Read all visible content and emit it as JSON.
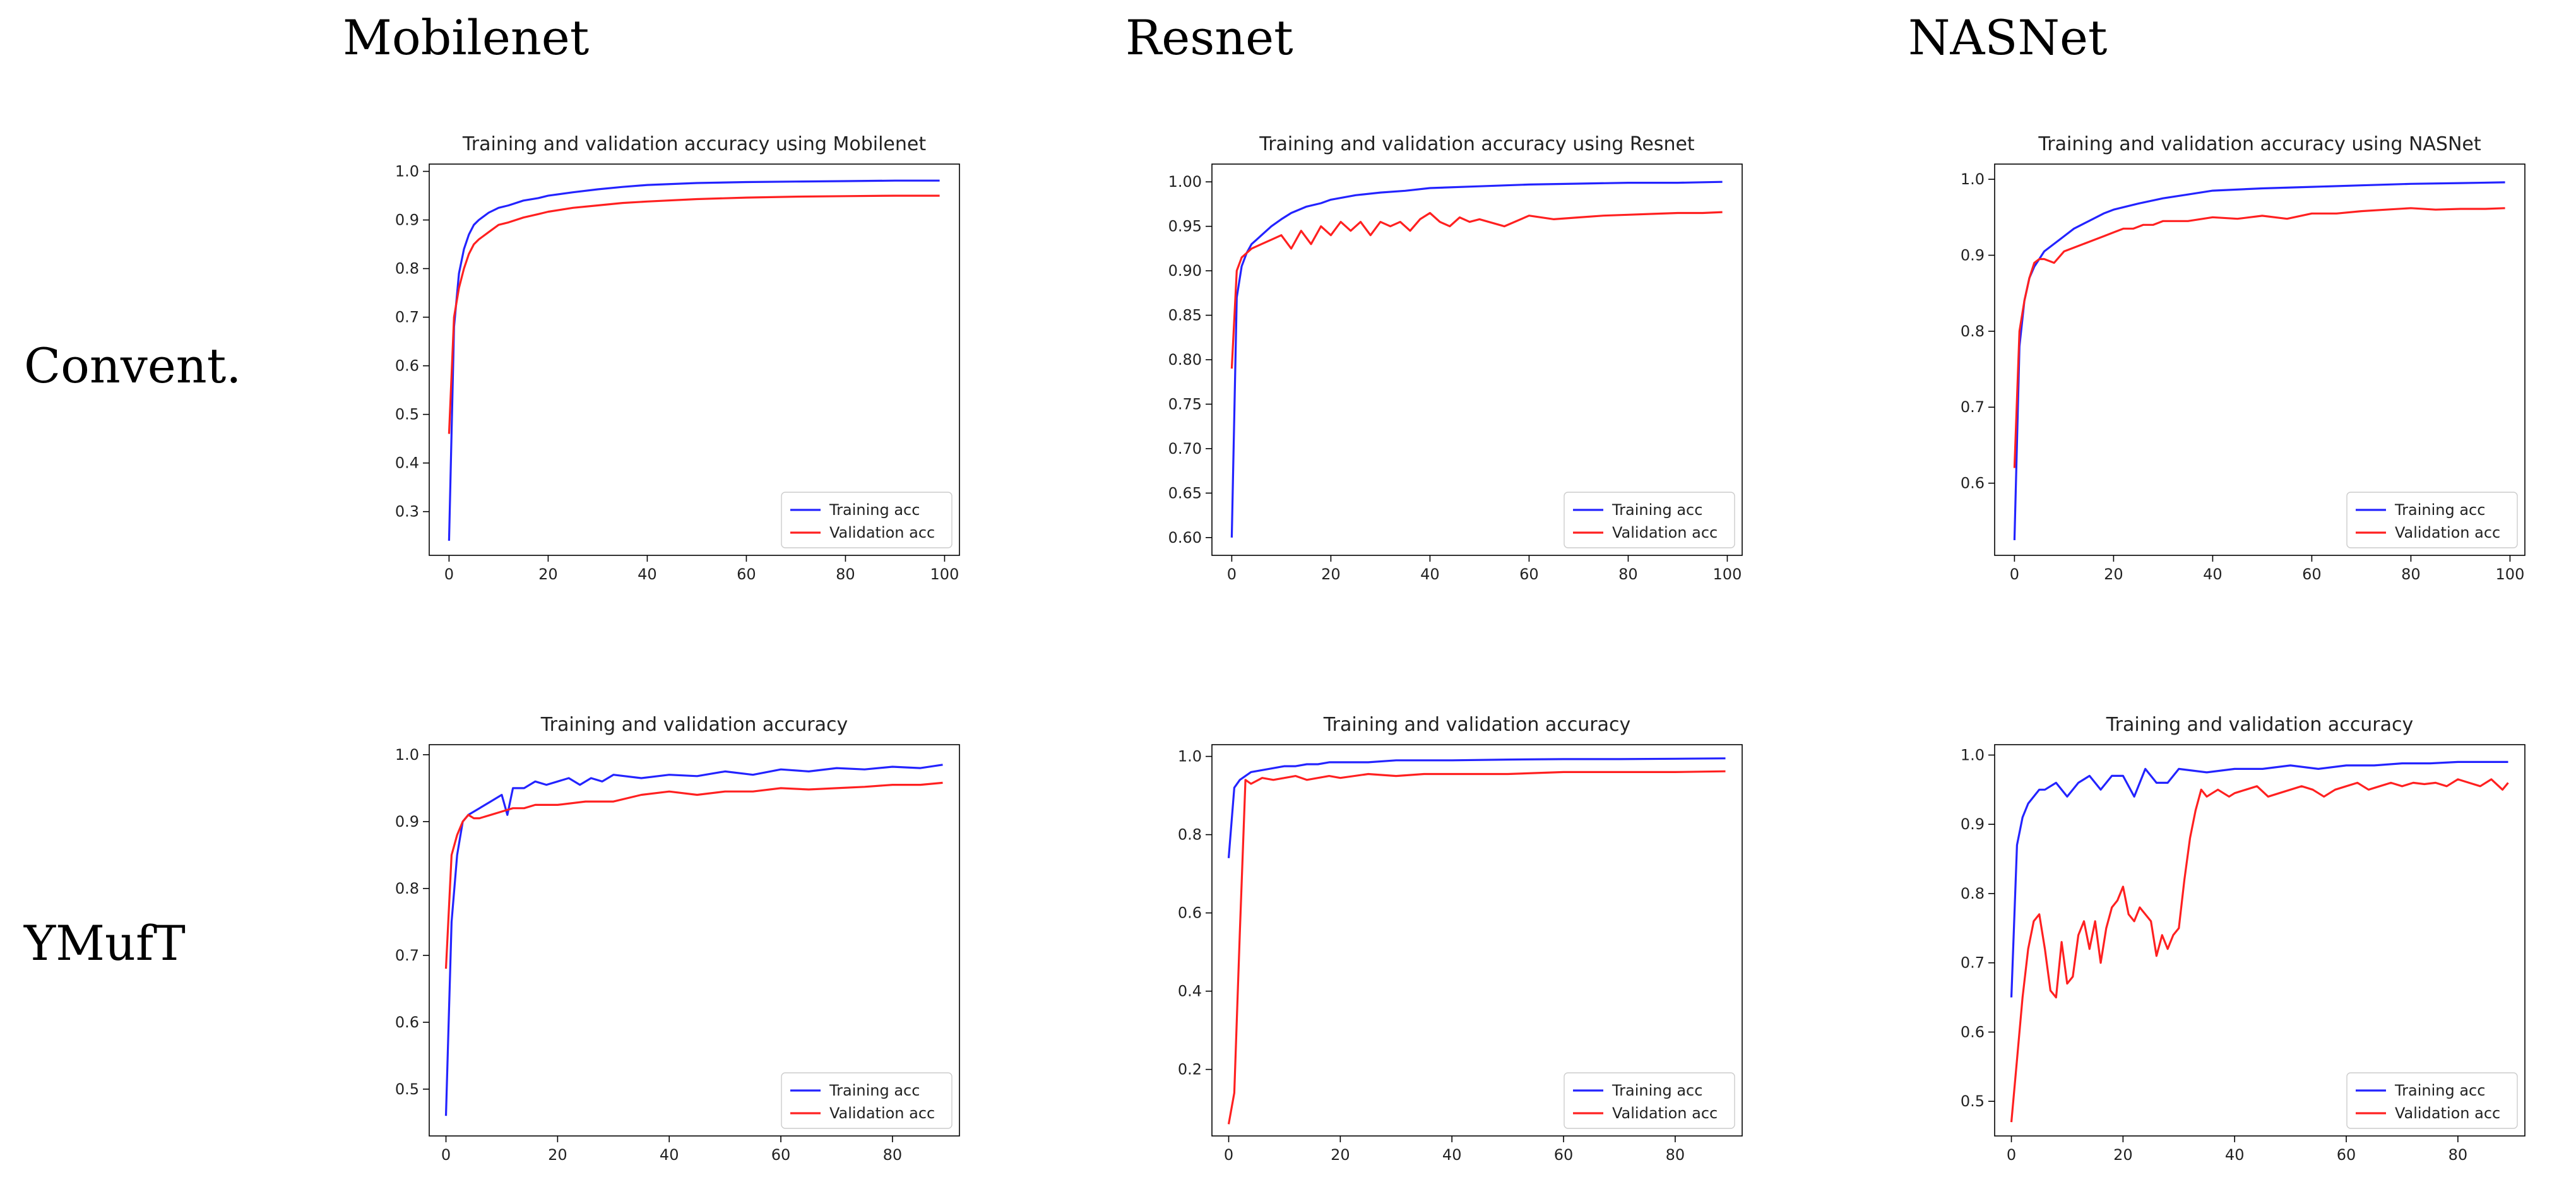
{
  "columns": [
    "Mobilenet",
    "Resnet",
    "NASNet"
  ],
  "rows": [
    "Convent.",
    "YMufT"
  ],
  "legend": {
    "train": "Training acc",
    "val": "Validation acc"
  },
  "colors": {
    "train": "#2323ff",
    "val": "#ff2020",
    "axis": "#000000",
    "text": "#222222"
  },
  "chart_data": [
    {
      "id": "conv-mobilenet",
      "type": "line",
      "title": "Training and validation accuracy using Mobilenet",
      "xlabel": "",
      "ylabel": "",
      "xlim": [
        -4,
        103
      ],
      "ylim": [
        0.21,
        1.015
      ],
      "xticks": [
        0,
        20,
        40,
        60,
        80,
        100
      ],
      "yticks": [
        0.3,
        0.4,
        0.5,
        0.6,
        0.7,
        0.8,
        0.9,
        1.0
      ],
      "ytick_labels": [
        "0.3",
        "0.4",
        "0.5",
        "0.6",
        "0.7",
        "0.8",
        "0.9",
        "1.0"
      ],
      "legend_position": "lower-right",
      "series": [
        {
          "name": "Training acc",
          "key": "train",
          "x": [
            0,
            1,
            2,
            3,
            4,
            5,
            6,
            8,
            10,
            12,
            15,
            18,
            20,
            25,
            30,
            35,
            40,
            50,
            60,
            70,
            80,
            90,
            99
          ],
          "y": [
            0.24,
            0.68,
            0.79,
            0.84,
            0.87,
            0.89,
            0.9,
            0.915,
            0.925,
            0.93,
            0.94,
            0.945,
            0.95,
            0.957,
            0.963,
            0.968,
            0.972,
            0.976,
            0.978,
            0.979,
            0.98,
            0.981,
            0.981
          ]
        },
        {
          "name": "Validation acc",
          "key": "val",
          "x": [
            0,
            1,
            2,
            3,
            4,
            5,
            6,
            8,
            10,
            12,
            15,
            18,
            20,
            25,
            30,
            35,
            40,
            50,
            60,
            70,
            80,
            90,
            99
          ],
          "y": [
            0.46,
            0.7,
            0.76,
            0.8,
            0.83,
            0.85,
            0.86,
            0.875,
            0.89,
            0.895,
            0.905,
            0.912,
            0.917,
            0.925,
            0.93,
            0.935,
            0.938,
            0.943,
            0.946,
            0.948,
            0.949,
            0.95,
            0.95
          ]
        }
      ]
    },
    {
      "id": "conv-resnet",
      "type": "line",
      "title": "Training and validation accuracy using Resnet",
      "xlabel": "",
      "ylabel": "",
      "xlim": [
        -4,
        103
      ],
      "ylim": [
        0.58,
        1.02
      ],
      "xticks": [
        0,
        20,
        40,
        60,
        80,
        100
      ],
      "yticks": [
        0.6,
        0.65,
        0.7,
        0.75,
        0.8,
        0.85,
        0.9,
        0.95,
        1.0
      ],
      "ytick_labels": [
        "0.60",
        "0.65",
        "0.70",
        "0.75",
        "0.80",
        "0.85",
        "0.90",
        "0.95",
        "1.00"
      ],
      "legend_position": "lower-right",
      "series": [
        {
          "name": "Training acc",
          "key": "train",
          "x": [
            0,
            1,
            2,
            3,
            4,
            5,
            6,
            8,
            10,
            12,
            15,
            18,
            20,
            25,
            30,
            35,
            40,
            50,
            60,
            70,
            80,
            90,
            99
          ],
          "y": [
            0.6,
            0.87,
            0.905,
            0.92,
            0.93,
            0.935,
            0.94,
            0.95,
            0.958,
            0.965,
            0.972,
            0.976,
            0.98,
            0.985,
            0.988,
            0.99,
            0.993,
            0.995,
            0.997,
            0.998,
            0.999,
            0.999,
            1.0
          ]
        },
        {
          "name": "Validation acc",
          "key": "val",
          "x": [
            0,
            1,
            2,
            3,
            4,
            6,
            8,
            10,
            12,
            14,
            16,
            18,
            20,
            22,
            24,
            26,
            28,
            30,
            32,
            34,
            36,
            38,
            40,
            42,
            44,
            46,
            48,
            50,
            55,
            60,
            65,
            70,
            75,
            80,
            85,
            90,
            95,
            99
          ],
          "y": [
            0.79,
            0.9,
            0.915,
            0.92,
            0.925,
            0.93,
            0.935,
            0.94,
            0.925,
            0.945,
            0.93,
            0.95,
            0.94,
            0.955,
            0.945,
            0.955,
            0.94,
            0.955,
            0.95,
            0.955,
            0.945,
            0.958,
            0.965,
            0.955,
            0.95,
            0.96,
            0.955,
            0.958,
            0.95,
            0.962,
            0.958,
            0.96,
            0.962,
            0.963,
            0.964,
            0.965,
            0.965,
            0.966
          ]
        }
      ]
    },
    {
      "id": "conv-nasnet",
      "type": "line",
      "title": "Training and validation accuracy using NASNet",
      "xlabel": "",
      "ylabel": "",
      "xlim": [
        -4,
        103
      ],
      "ylim": [
        0.505,
        1.02
      ],
      "xticks": [
        0,
        20,
        40,
        60,
        80,
        100
      ],
      "yticks": [
        0.6,
        0.7,
        0.8,
        0.9,
        1.0
      ],
      "ytick_labels": [
        "0.6",
        "0.7",
        "0.8",
        "0.9",
        "1.0"
      ],
      "legend_position": "lower-right",
      "series": [
        {
          "name": "Training acc",
          "key": "train",
          "x": [
            0,
            1,
            2,
            3,
            4,
            5,
            6,
            8,
            10,
            12,
            15,
            18,
            20,
            25,
            30,
            35,
            40,
            50,
            60,
            70,
            80,
            90,
            99
          ],
          "y": [
            0.525,
            0.78,
            0.84,
            0.87,
            0.885,
            0.895,
            0.905,
            0.915,
            0.925,
            0.935,
            0.945,
            0.955,
            0.96,
            0.968,
            0.975,
            0.98,
            0.985,
            0.988,
            0.99,
            0.992,
            0.994,
            0.995,
            0.996
          ]
        },
        {
          "name": "Validation acc",
          "key": "val",
          "x": [
            0,
            1,
            2,
            3,
            4,
            5,
            6,
            8,
            10,
            12,
            14,
            16,
            18,
            20,
            22,
            24,
            26,
            28,
            30,
            35,
            40,
            45,
            50,
            55,
            60,
            65,
            70,
            75,
            80,
            85,
            90,
            95,
            99
          ],
          "y": [
            0.62,
            0.8,
            0.84,
            0.87,
            0.89,
            0.895,
            0.895,
            0.89,
            0.905,
            0.91,
            0.915,
            0.92,
            0.925,
            0.93,
            0.935,
            0.935,
            0.94,
            0.94,
            0.945,
            0.945,
            0.95,
            0.948,
            0.952,
            0.948,
            0.955,
            0.955,
            0.958,
            0.96,
            0.962,
            0.96,
            0.961,
            0.961,
            0.962
          ]
        }
      ]
    },
    {
      "id": "ymuft-mobilenet",
      "type": "line",
      "title": "Training and validation accuracy",
      "xlabel": "",
      "ylabel": "",
      "xlim": [
        -3,
        92
      ],
      "ylim": [
        0.43,
        1.015
      ],
      "xticks": [
        0,
        20,
        40,
        60,
        80
      ],
      "yticks": [
        0.5,
        0.6,
        0.7,
        0.8,
        0.9,
        1.0
      ],
      "ytick_labels": [
        "0.5",
        "0.6",
        "0.7",
        "0.8",
        "0.9",
        "1.0"
      ],
      "legend_position": "lower-right",
      "series": [
        {
          "name": "Training acc",
          "key": "train",
          "x": [
            0,
            1,
            2,
            3,
            4,
            6,
            8,
            10,
            11,
            12,
            14,
            16,
            18,
            20,
            22,
            24,
            26,
            28,
            30,
            35,
            40,
            45,
            50,
            55,
            60,
            65,
            70,
            75,
            80,
            85,
            89
          ],
          "y": [
            0.46,
            0.75,
            0.85,
            0.9,
            0.91,
            0.92,
            0.93,
            0.94,
            0.91,
            0.95,
            0.95,
            0.96,
            0.955,
            0.96,
            0.965,
            0.955,
            0.965,
            0.96,
            0.97,
            0.965,
            0.97,
            0.968,
            0.975,
            0.97,
            0.978,
            0.975,
            0.98,
            0.978,
            0.982,
            0.98,
            0.985
          ]
        },
        {
          "name": "Validation acc",
          "key": "val",
          "x": [
            0,
            1,
            2,
            3,
            4,
            5,
            6,
            8,
            10,
            12,
            14,
            16,
            18,
            20,
            25,
            30,
            35,
            40,
            45,
            50,
            55,
            60,
            65,
            70,
            75,
            80,
            85,
            89
          ],
          "y": [
            0.68,
            0.85,
            0.88,
            0.9,
            0.91,
            0.905,
            0.905,
            0.91,
            0.915,
            0.92,
            0.92,
            0.925,
            0.925,
            0.925,
            0.93,
            0.93,
            0.94,
            0.945,
            0.94,
            0.945,
            0.945,
            0.95,
            0.948,
            0.95,
            0.952,
            0.955,
            0.955,
            0.958
          ]
        }
      ]
    },
    {
      "id": "ymuft-resnet",
      "type": "line",
      "title": "Training and validation accuracy",
      "xlabel": "",
      "ylabel": "",
      "xlim": [
        -3,
        92
      ],
      "ylim": [
        0.03,
        1.03
      ],
      "xticks": [
        0,
        20,
        40,
        60,
        80
      ],
      "yticks": [
        0.2,
        0.4,
        0.6,
        0.8,
        1.0
      ],
      "ytick_labels": [
        "0.2",
        "0.4",
        "0.6",
        "0.8",
        "1.0"
      ],
      "legend_position": "lower-right",
      "series": [
        {
          "name": "Training acc",
          "key": "train",
          "x": [
            0,
            1,
            2,
            3,
            4,
            6,
            8,
            10,
            12,
            14,
            16,
            18,
            20,
            25,
            30,
            35,
            40,
            50,
            60,
            70,
            80,
            89
          ],
          "y": [
            0.74,
            0.92,
            0.94,
            0.95,
            0.96,
            0.965,
            0.97,
            0.975,
            0.975,
            0.98,
            0.98,
            0.985,
            0.985,
            0.985,
            0.99,
            0.99,
            0.99,
            0.992,
            0.993,
            0.993,
            0.994,
            0.995
          ]
        },
        {
          "name": "Validation acc",
          "key": "val",
          "x": [
            0,
            1,
            2,
            3,
            4,
            6,
            8,
            10,
            12,
            14,
            16,
            18,
            20,
            25,
            30,
            35,
            40,
            50,
            60,
            70,
            80,
            89
          ],
          "y": [
            0.06,
            0.14,
            0.55,
            0.94,
            0.93,
            0.945,
            0.94,
            0.945,
            0.95,
            0.94,
            0.945,
            0.95,
            0.945,
            0.955,
            0.95,
            0.955,
            0.955,
            0.955,
            0.96,
            0.96,
            0.96,
            0.962
          ]
        }
      ]
    },
    {
      "id": "ymuft-nasnet",
      "type": "line",
      "title": "Training and validation accuracy",
      "xlabel": "",
      "ylabel": "",
      "xlim": [
        -3,
        92
      ],
      "ylim": [
        0.45,
        1.015
      ],
      "xticks": [
        0,
        20,
        40,
        60,
        80
      ],
      "yticks": [
        0.5,
        0.6,
        0.7,
        0.8,
        0.9,
        1.0
      ],
      "ytick_labels": [
        "0.5",
        "0.6",
        "0.7",
        "0.8",
        "0.9",
        "1.0"
      ],
      "legend_position": "lower-right",
      "series": [
        {
          "name": "Training acc",
          "key": "train",
          "x": [
            0,
            1,
            2,
            3,
            4,
            5,
            6,
            8,
            10,
            12,
            14,
            16,
            18,
            20,
            22,
            24,
            26,
            28,
            30,
            35,
            40,
            45,
            50,
            55,
            60,
            65,
            70,
            75,
            80,
            85,
            89
          ],
          "y": [
            0.65,
            0.87,
            0.91,
            0.93,
            0.94,
            0.95,
            0.95,
            0.96,
            0.94,
            0.96,
            0.97,
            0.95,
            0.97,
            0.97,
            0.94,
            0.98,
            0.96,
            0.96,
            0.98,
            0.975,
            0.98,
            0.98,
            0.985,
            0.98,
            0.985,
            0.985,
            0.988,
            0.988,
            0.99,
            0.99,
            0.99
          ]
        },
        {
          "name": "Validation acc",
          "key": "val",
          "x": [
            0,
            1,
            2,
            3,
            4,
            5,
            6,
            7,
            8,
            9,
            10,
            11,
            12,
            13,
            14,
            15,
            16,
            17,
            18,
            19,
            20,
            21,
            22,
            23,
            24,
            25,
            26,
            27,
            28,
            29,
            30,
            31,
            32,
            33,
            34,
            35,
            36,
            37,
            38,
            39,
            40,
            42,
            44,
            46,
            48,
            50,
            52,
            54,
            56,
            58,
            60,
            62,
            64,
            66,
            68,
            70,
            72,
            74,
            76,
            78,
            80,
            82,
            84,
            86,
            88,
            89
          ],
          "y": [
            0.47,
            0.56,
            0.65,
            0.72,
            0.76,
            0.77,
            0.72,
            0.66,
            0.65,
            0.73,
            0.67,
            0.68,
            0.74,
            0.76,
            0.72,
            0.76,
            0.7,
            0.75,
            0.78,
            0.79,
            0.81,
            0.77,
            0.76,
            0.78,
            0.77,
            0.76,
            0.71,
            0.74,
            0.72,
            0.74,
            0.75,
            0.82,
            0.88,
            0.92,
            0.95,
            0.94,
            0.945,
            0.95,
            0.945,
            0.94,
            0.945,
            0.95,
            0.955,
            0.94,
            0.945,
            0.95,
            0.955,
            0.95,
            0.94,
            0.95,
            0.955,
            0.96,
            0.95,
            0.955,
            0.96,
            0.955,
            0.96,
            0.958,
            0.96,
            0.955,
            0.965,
            0.96,
            0.955,
            0.965,
            0.95,
            0.96
          ]
        }
      ]
    }
  ]
}
